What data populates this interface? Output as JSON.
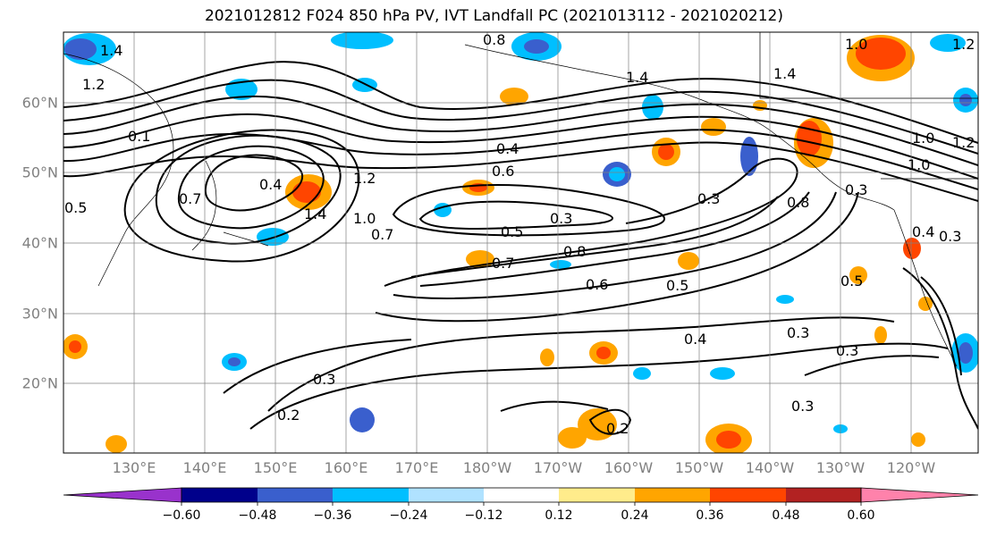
{
  "title": "2021012812 F024 850 hPa PV, IVT Landfall PC (2021013112 - 2021020212)",
  "lat_labels": [
    "60°N",
    "50°N",
    "40°N",
    "30°N",
    "20°N"
  ],
  "lon_labels": [
    "130°E",
    "140°E",
    "150°E",
    "160°E",
    "170°E",
    "180°W",
    "170°W",
    "160°W",
    "150°W",
    "140°W",
    "130°W",
    "120°W"
  ],
  "contour_labels": [
    "1.4",
    "1.2",
    "0.8",
    "1.0",
    "1.4",
    "1.2",
    "1.0",
    "1.2",
    "1.0",
    "1.4",
    "0.4",
    "0.6",
    "0.4",
    "1.2",
    "0.7",
    "0.3",
    "0.8",
    "0.3",
    "0.5",
    "0.3",
    "0.8",
    "0.5",
    "0.7",
    "0.6",
    "0.5",
    "0.4",
    "0.3",
    "0.3",
    "0.3",
    "0.2",
    "0.2",
    "0.3",
    "0.4",
    "0.3",
    "1.0",
    "1.4",
    "0.5",
    "0.7",
    "0.1"
  ],
  "colorbar": {
    "ticks": [
      "−0.60",
      "−0.48",
      "−0.36",
      "−0.24",
      "−0.12",
      "0.12",
      "0.24",
      "0.36",
      "0.48",
      "0.60"
    ],
    "colors": [
      "#9932cc",
      "#00008b",
      "#3a5fcd",
      "#00bfff",
      "#b0e2ff",
      "#ffffff",
      "#ffec8b",
      "#ffa500",
      "#ff4500",
      "#b22222",
      "#ff82ab"
    ]
  }
}
